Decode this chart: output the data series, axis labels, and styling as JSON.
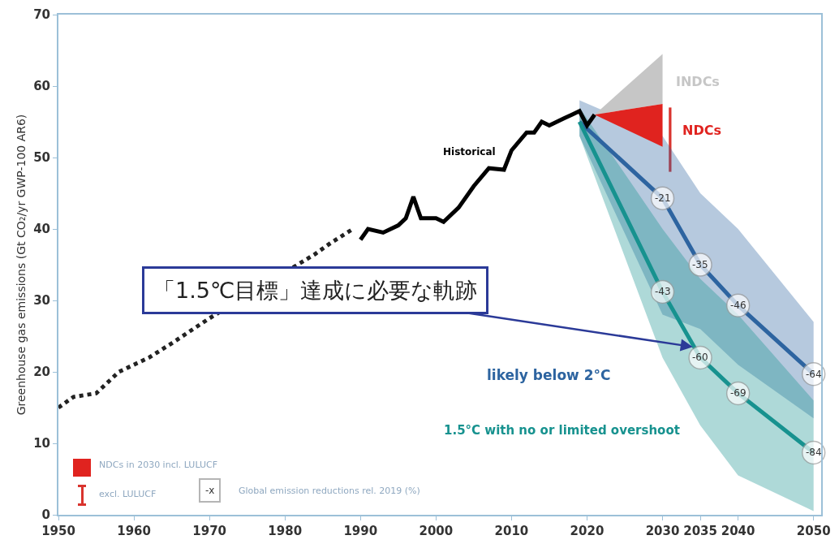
{
  "chart_data": {
    "type": "line",
    "ylabel": "Greenhouse gas emissions (Gt CO₂/yr GWP-100 AR6)",
    "xlim": [
      1950,
      2051
    ],
    "xticks": [
      1950,
      1960,
      1970,
      1980,
      1990,
      2000,
      2010,
      2020,
      2030,
      2035,
      2040,
      2050
    ],
    "ylim": [
      0,
      70
    ],
    "yticks": [
      0,
      10,
      20,
      30,
      40,
      50,
      60,
      70
    ],
    "grid": false,
    "legend": false,
    "series": [
      {
        "name": "likely below 2°C",
        "marker": "circle",
        "color": "#2d64a0",
        "x": [
          2019,
          2030,
          2035,
          2040,
          2050
        ],
        "values": [
          55,
          44.3,
          35,
          29.3,
          19.7
        ],
        "lower": [
          53,
          28,
          26,
          21,
          13.5
        ],
        "upper": [
          58,
          53,
          45,
          40,
          27
        ]
      },
      {
        "name": "1.5°C with no or limited overshoot",
        "marker": "circle",
        "color": "#17928f",
        "x": [
          2019,
          2030,
          2035,
          2040,
          2050
        ],
        "values": [
          55,
          31.2,
          22,
          17,
          8.7
        ],
        "lower": [
          53,
          22,
          12.5,
          5.5,
          0.5
        ],
        "upper": [
          57,
          40,
          33,
          28,
          16
        ]
      },
      {
        "name": "INDCs",
        "color": "#c6c6c6",
        "x": [
          2021,
          2030
        ],
        "values": [
          null,
          null
        ],
        "lower": [
          56,
          57.5
        ],
        "upper": [
          56,
          64.5
        ]
      },
      {
        "name": "NDCs",
        "color": "#e0231f",
        "x": [
          2021,
          2030
        ],
        "values": [
          null,
          null
        ],
        "lower": [
          56,
          51.5
        ],
        "upper": [
          56,
          57.5
        ]
      },
      {
        "type": "bar",
        "color": "#d9342e",
        "x": [
          2031
        ],
        "base": [
          48
        ],
        "values": [
          9
        ]
      },
      {
        "line_style": "dotted",
        "color": "#222222",
        "x": [
          1950,
          1952,
          1955,
          1958,
          1962,
          1965,
          1970,
          1984,
          1986,
          1989
        ],
        "values": [
          15,
          16.5,
          17,
          20,
          22,
          24,
          27.5,
          36.5,
          38,
          40
        ]
      },
      {
        "name": "Historical",
        "line_style": "solid",
        "color": "#000000",
        "x": [
          1990,
          1991,
          1993,
          1995,
          1996,
          1997,
          1998,
          2000,
          2001,
          2003,
          2005,
          2007,
          2009,
          2010,
          2012,
          2013,
          2014,
          2015,
          2017,
          2018,
          2019,
          2020,
          2021
        ],
        "values": [
          38.5,
          40,
          39.5,
          40.5,
          41.5,
          44.5,
          41.5,
          41.5,
          41,
          43,
          46,
          48.5,
          48.3,
          51,
          53.5,
          53.5,
          55,
          54.5,
          55.5,
          56,
          56.5,
          54.5,
          56
        ]
      }
    ],
    "annotations": [
      {
        "text": "「1.5℃目標」達成に必要な軌跡",
        "x": 2034,
        "y": 23.5
      },
      {
        "text": "-21",
        "x": 2030,
        "y": 44.3
      },
      {
        "text": "-35",
        "x": 2035,
        "y": 35
      },
      {
        "text": "-46",
        "x": 2040,
        "y": 29.3
      },
      {
        "text": "-64",
        "x": 2050,
        "y": 19.7
      },
      {
        "text": "-43",
        "x": 2030,
        "y": 31.2
      },
      {
        "text": "-60",
        "x": 2035,
        "y": 22
      },
      {
        "text": "-69",
        "x": 2040,
        "y": 17
      },
      {
        "text": "-84",
        "x": 2050,
        "y": 8.7
      },
      "NDCs in 2030 incl. LULUCF",
      "excl. LULUCF",
      "-x",
      "Global emission reductions rel. 2019 (%)"
    ]
  }
}
